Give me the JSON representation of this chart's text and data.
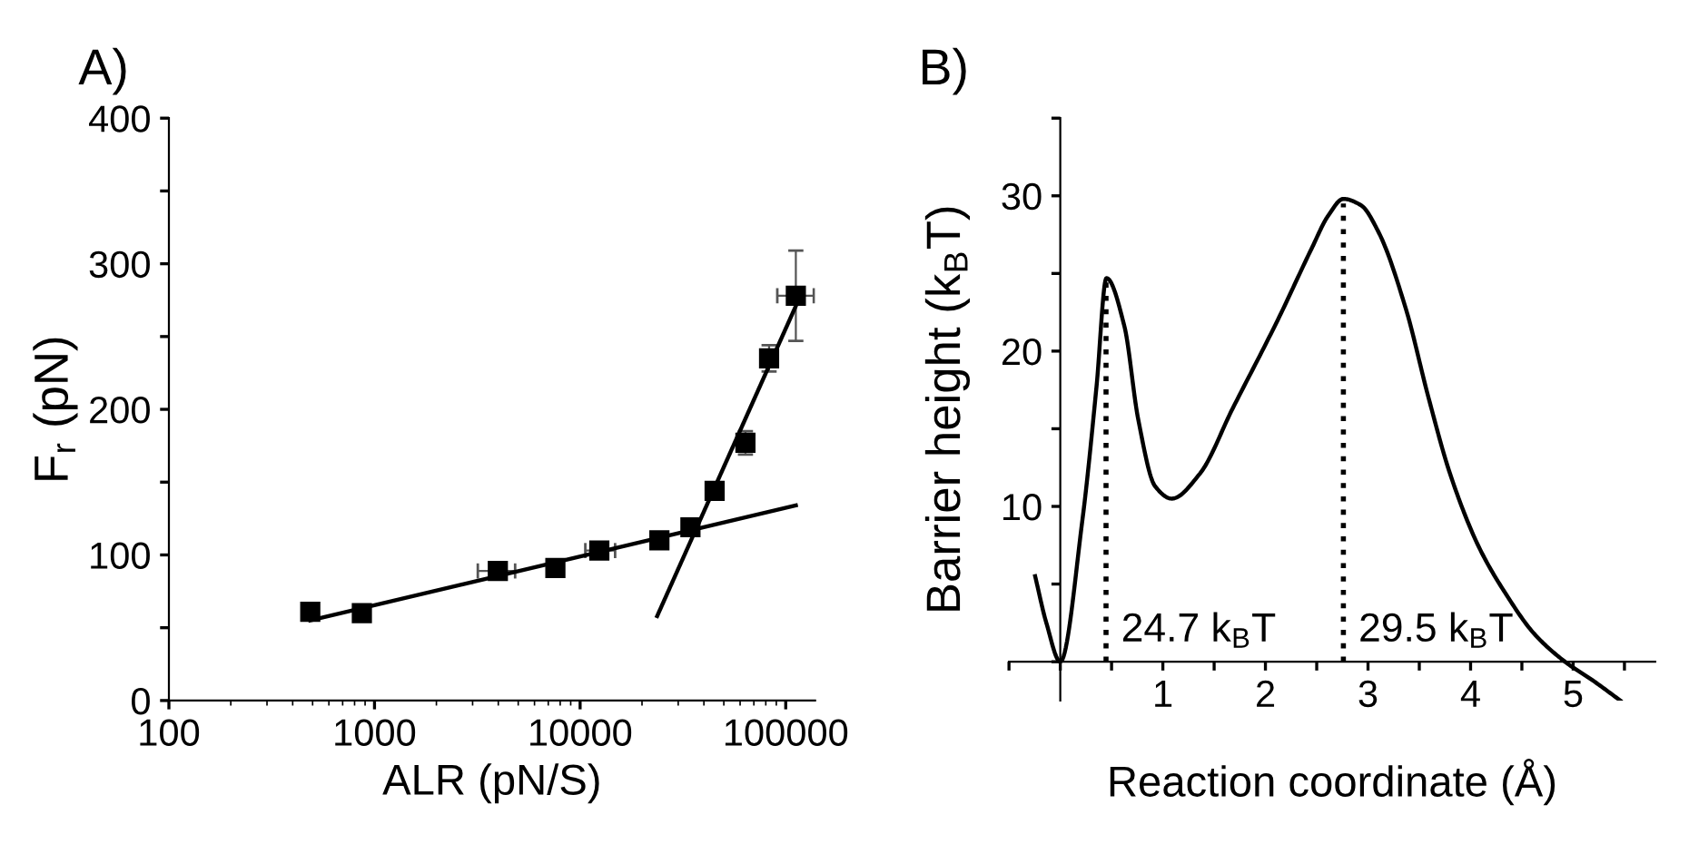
{
  "chart_data": [
    {
      "type": "scatter",
      "title": "A)",
      "xlabel": "ALR (pN/S)",
      "ylabel": "F$_{r}$ (pN)",
      "log": "x",
      "grid": false,
      "legend": false,
      "xlim": [
        100,
        139000
      ],
      "xticks": [
        100,
        1000,
        10000,
        100000
      ],
      "ylim": [
        0,
        400
      ],
      "yticks": [
        0,
        {
          "value": 50,
          "label": null
        },
        100,
        {
          "value": 150,
          "label": null
        },
        200,
        {
          "value": 250,
          "label": null
        },
        300,
        {
          "value": 350,
          "label": null
        },
        400
      ],
      "series": [
        {
          "color": "#000000",
          "marker": "square",
          "x": [
            487,
            868,
            3980,
            7580,
            12400,
            24300,
            34400,
            45100,
            63700,
            83000,
            112000
          ],
          "values": [
            61,
            60,
            89,
            91,
            103,
            110,
            119,
            144,
            177,
            235,
            278
          ],
          "errors": [
            null,
            null,
            null,
            null,
            null,
            5,
            5,
            null,
            8,
            9,
            31
          ],
          "xerrors": [
            null,
            null,
            [
              3180,
              4830
            ],
            null,
            [
              10600,
              14800
            ],
            null,
            null,
            [
              42000,
              49000
            ],
            null,
            null,
            [
              91000,
              137000
            ]
          ]
        },
        {
          "type": "line",
          "color": "#000000",
          "marker": "none",
          "line_style": "solid",
          "x": [
            487,
            112000
          ],
          "values": [
            55,
            134
          ]
        },
        {
          "type": "line",
          "color": "#000000",
          "marker": "none",
          "line_style": "solid",
          "x": [
            23700,
            112000
          ],
          "values": [
            58,
            271
          ]
        }
      ]
    },
    {
      "type": "line",
      "title": "B)",
      "xlabel": "Reaction coordinate (Å)",
      "ylabel": "Barrier height (k$_{B}$T)",
      "grid": false,
      "legend": false,
      "xlim": [
        -0.5,
        5.8
      ],
      "xticks": [
        {
          "value": -0.5,
          "label": null
        },
        {
          "value": 0,
          "label": null
        },
        {
          "value": 0.5,
          "label": null
        },
        1,
        {
          "value": 1.5,
          "label": null
        },
        2,
        {
          "value": 2.5,
          "label": null
        },
        3,
        {
          "value": 3.5,
          "label": null
        },
        4,
        {
          "value": 4.5,
          "label": null
        },
        5,
        {
          "value": 5.5,
          "label": null
        }
      ],
      "ylim": [
        -2.5,
        35
      ],
      "yticks": [
        {
          "value": 0,
          "label": null
        },
        {
          "value": 5,
          "label": null
        },
        10,
        {
          "value": 15,
          "label": null
        },
        20,
        {
          "value": 25,
          "label": null
        },
        30,
        {
          "value": 35,
          "label": null
        }
      ],
      "annotations": [
        "24.7 k$_{B}$T",
        "29.5 k$_{B}$T"
      ],
      "series": [
        {
          "color": "#000000",
          "marker": "none",
          "line_style": "solid",
          "x": [
            -0.245,
            -0.136,
            0,
            0.217,
            0.353,
            0.45,
            0.625,
            0.76,
            0.924,
            1.087,
            1.36,
            1.68,
            2.12,
            2.45,
            2.61,
            2.76,
            2.93,
            3.1,
            3.37,
            3.59,
            3.8,
            4.08,
            4.35,
            4.62,
            4.92,
            5.19,
            5.46
          ],
          "values": [
            5.5,
            2.5,
            0,
            9.2,
            17.7,
            24.7,
            21.6,
            15.6,
            11.3,
            10.5,
            12.1,
            16.3,
            22,
            26.6,
            28.7,
            29.8,
            29.4,
            27.7,
            22.7,
            17,
            12.1,
            7.4,
            4.3,
            1.8,
            0,
            -1.2,
            -2.5
          ]
        },
        {
          "color": "#000000",
          "marker": "none",
          "line_style": "dotted",
          "x": [
            0.446,
            0.446
          ],
          "values": [
            0,
            24.7
          ]
        },
        {
          "color": "#000000",
          "marker": "none",
          "line_style": "dotted",
          "x": [
            2.76,
            2.76
          ],
          "values": [
            0,
            29.5
          ]
        }
      ]
    }
  ]
}
